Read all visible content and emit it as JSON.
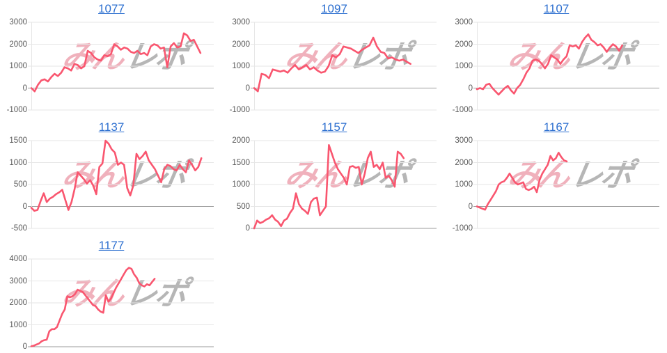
{
  "style": {
    "line_color": "#f9566f",
    "grid_color": "#e6e6e6",
    "zero_line_color": "#9b9b9b",
    "title_color": "#2e70d0",
    "tick_label_color": "#595959",
    "watermark_pink_color": "#dc465f",
    "watermark_gray_color": "#737373",
    "background": "#ffffff"
  },
  "watermark": {
    "pink": "みん",
    "gray": "レポ"
  },
  "chart_data": [
    {
      "type": "line",
      "title": "1077",
      "ylabel": "",
      "xlabel": "",
      "ylim": [
        -1000,
        3000
      ],
      "yticks": [
        3000,
        2000,
        1000,
        0,
        -1000
      ],
      "grid": true,
      "xmax": 56,
      "values": [
        0,
        -150,
        150,
        350,
        400,
        300,
        500,
        650,
        550,
        700,
        950,
        900,
        800,
        1100,
        1050,
        900,
        1000,
        1700,
        1600,
        1400,
        1300,
        1250,
        1500,
        1450,
        1550,
        2000,
        1900,
        1750,
        1850,
        1800,
        1650,
        1600,
        1700,
        1550,
        1600,
        1500,
        1900,
        2000,
        1950,
        1800,
        1850,
        950,
        1900,
        2050,
        1850,
        1900,
        2500,
        2400,
        2150,
        2200,
        1900,
        1600
      ]
    },
    {
      "type": "line",
      "title": "1097",
      "ylabel": "",
      "xlabel": "",
      "ylim": [
        -1000,
        3000
      ],
      "yticks": [
        3000,
        2000,
        1000,
        0,
        -1000
      ],
      "grid": true,
      "xmax": 50,
      "values": [
        0,
        -150,
        650,
        600,
        450,
        850,
        800,
        750,
        800,
        700,
        900,
        1050,
        850,
        950,
        1050,
        850,
        950,
        800,
        700,
        750,
        1000,
        1500,
        1400,
        1550,
        1900,
        1850,
        1800,
        1700,
        1600,
        1750,
        1850,
        1950,
        2300,
        1900,
        1650,
        1600,
        1350,
        1400,
        1300,
        1250,
        1300,
        1200,
        1100
      ]
    },
    {
      "type": "line",
      "title": "1107",
      "ylabel": "",
      "xlabel": "",
      "ylim": [
        -1000,
        3000
      ],
      "yticks": [
        3000,
        2000,
        1000,
        0,
        -1000
      ],
      "grid": true,
      "xmax": 60,
      "values": [
        -50,
        0,
        -50,
        150,
        200,
        0,
        -150,
        -300,
        -150,
        0,
        100,
        -100,
        -250,
        0,
        150,
        400,
        700,
        900,
        1250,
        1300,
        1250,
        1100,
        900,
        1100,
        1500,
        1400,
        1300,
        1100,
        1300,
        1450,
        1950,
        1900,
        1950,
        1800,
        2100,
        2300,
        2450,
        2200,
        2100,
        1950,
        2000,
        1850,
        1650,
        1850,
        2000,
        1900,
        1700,
        1950
      ]
    },
    {
      "type": "line",
      "title": "1137",
      "ylabel": "",
      "xlabel": "",
      "ylim": [
        -500,
        1500
      ],
      "yticks": [
        1500,
        1000,
        500,
        0,
        -500
      ],
      "grid": true,
      "xmax": 60,
      "values": [
        -30,
        -100,
        -80,
        120,
        300,
        100,
        180,
        220,
        280,
        320,
        380,
        150,
        -80,
        100,
        400,
        780,
        700,
        620,
        520,
        600,
        480,
        280,
        900,
        980,
        1500,
        1430,
        1300,
        1230,
        950,
        1000,
        950,
        420,
        250,
        480,
        1200,
        1080,
        1150,
        1250,
        1050,
        950,
        850,
        700,
        550,
        850,
        950,
        920,
        850,
        820,
        950,
        850,
        780,
        1050,
        950,
        820,
        900,
        1100
      ]
    },
    {
      "type": "line",
      "title": "1157",
      "ylabel": "",
      "xlabel": "",
      "ylim": [
        0,
        2000
      ],
      "yticks": [
        2000,
        1500,
        1000,
        500,
        0
      ],
      "grid": true,
      "xmax": 62,
      "values": [
        0,
        180,
        120,
        150,
        200,
        230,
        300,
        200,
        150,
        50,
        180,
        220,
        350,
        450,
        800,
        550,
        450,
        400,
        330,
        600,
        680,
        700,
        300,
        400,
        500,
        1900,
        1700,
        1500,
        1350,
        1250,
        1150,
        1000,
        1400,
        1420,
        1380,
        1400,
        1000,
        1250,
        1600,
        1750,
        1400,
        1450,
        1350,
        1500,
        1150,
        1200,
        1100,
        950,
        1750,
        1700,
        1600
      ]
    },
    {
      "type": "line",
      "title": "1167",
      "ylabel": "",
      "xlabel": "",
      "ylim": [
        -1000,
        3000
      ],
      "yticks": [
        3000,
        2000,
        1000,
        0,
        -1000
      ],
      "grid": true,
      "xmax": 68,
      "values": [
        0,
        -50,
        -100,
        -150,
        100,
        300,
        500,
        700,
        1000,
        1100,
        1150,
        1300,
        1500,
        1300,
        1100,
        1000,
        1050,
        1100,
        800,
        750,
        800,
        900,
        650,
        1200,
        1500,
        1700,
        1900,
        2300,
        2100,
        2200,
        2450,
        2250,
        2100,
        2050
      ]
    },
    {
      "type": "line",
      "title": "1177",
      "ylabel": "",
      "xlabel": "",
      "ylim": [
        0,
        4000
      ],
      "yticks": [
        4000,
        3000,
        2000,
        1000,
        0
      ],
      "grid": true,
      "xmax": 72,
      "values": [
        20,
        50,
        100,
        150,
        250,
        300,
        320,
        700,
        800,
        800,
        900,
        1200,
        1500,
        1700,
        2300,
        2250,
        2300,
        2400,
        2600,
        2550,
        2500,
        2350,
        2200,
        2050,
        1900,
        1850,
        1700,
        1600,
        1550,
        2350,
        2050,
        2200,
        2450,
        2700,
        2900,
        3100,
        3300,
        3500,
        3600,
        3550,
        3300,
        3150,
        2900,
        2800,
        2750,
        2850,
        2800,
        2950,
        3100
      ]
    }
  ]
}
